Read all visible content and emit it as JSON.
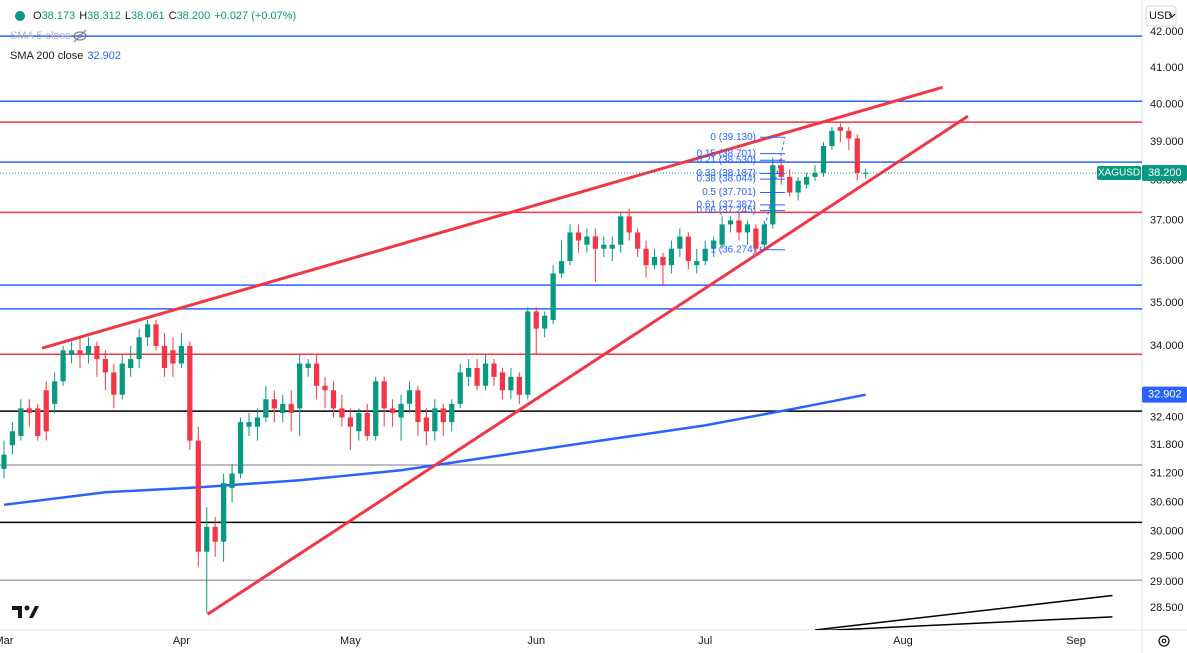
{
  "chart_data": {
    "type": "candlestick",
    "symbol": "XAGUSD",
    "currency": "USD",
    "header": {
      "items": [
        {
          "key": "O",
          "value": "38.173"
        },
        {
          "key": "H",
          "value": "38.312"
        },
        {
          "key": "L",
          "value": "38.061"
        },
        {
          "key": "C",
          "value": "38.200"
        }
      ],
      "change": "+0.027 (+0.07%)"
    },
    "hidden_indicator": "SMA 5 close",
    "up_color": "#089981",
    "down_color": "#f23645",
    "open": [
      31.3,
      31.8,
      32.0,
      32.6,
      32.6,
      33.0,
      32.7,
      33.2,
      33.8,
      33.9,
      33.8,
      34.0,
      33.7,
      33.4,
      32.9,
      33.5,
      33.7,
      34.2,
      34.5,
      34.0,
      33.9,
      33.6,
      34.0,
      31.9,
      29.6,
      30.1,
      29.8,
      30.9,
      31.2,
      32.2,
      32.2,
      32.4,
      32.8,
      32.5,
      32.7,
      32.6,
      33.5,
      33.6,
      33.1,
      33.0,
      32.6,
      32.4,
      32.1,
      32.5,
      32.0,
      33.2,
      32.6,
      32.4,
      32.7,
      33.0,
      32.4,
      32.1,
      32.6,
      32.3,
      32.7,
      33.3,
      33.5,
      33.1,
      33.6,
      33.4,
      33.0,
      33.3,
      32.9,
      34.8,
      34.4,
      34.6,
      35.7,
      36.0,
      36.7,
      36.4,
      36.6,
      36.3,
      36.3,
      36.4,
      37.1,
      36.7,
      36.3,
      35.9,
      36.1,
      35.9,
      36.3,
      36.6,
      35.9,
      36.0,
      36.3,
      36.4,
      36.9,
      37.0,
      36.7,
      36.8,
      36.4,
      36.9,
      38.4,
      38.1,
      37.7,
      37.9,
      38.1,
      38.2,
      38.9,
      39.4,
      39.3,
      39.1,
      38.173
    ],
    "high": [
      31.9,
      32.3,
      32.8,
      32.8,
      32.7,
      33.2,
      33.4,
      34.0,
      34.1,
      34.2,
      34.2,
      34.1,
      33.9,
      33.6,
      33.8,
      34.0,
      34.4,
      34.6,
      34.6,
      34.3,
      34.2,
      34.3,
      34.1,
      32.2,
      30.5,
      30.3,
      31.2,
      31.4,
      32.4,
      32.5,
      32.6,
      33.1,
      33.0,
      32.9,
      33.0,
      33.8,
      33.7,
      33.8,
      33.3,
      33.2,
      32.9,
      32.6,
      32.6,
      32.7,
      33.3,
      33.3,
      32.8,
      32.9,
      33.2,
      33.1,
      32.6,
      32.8,
      32.7,
      32.8,
      33.6,
      33.7,
      33.7,
      33.8,
      33.7,
      33.5,
      33.5,
      33.4,
      34.9,
      34.9,
      34.8,
      35.9,
      36.5,
      36.9,
      36.9,
      36.8,
      36.8,
      36.6,
      36.6,
      37.2,
      37.3,
      36.8,
      36.5,
      36.3,
      36.2,
      36.5,
      36.8,
      36.7,
      36.3,
      36.5,
      36.6,
      37.1,
      37.1,
      37.2,
      37.0,
      36.9,
      37.0,
      38.6,
      38.6,
      38.3,
      38.1,
      38.2,
      38.4,
      39.0,
      39.4,
      39.5,
      39.4,
      39.2,
      38.312
    ],
    "low": [
      31.1,
      31.6,
      31.9,
      32.2,
      31.9,
      31.9,
      32.5,
      33.1,
      33.6,
      33.5,
      33.6,
      33.3,
      33.0,
      32.6,
      32.8,
      33.3,
      33.5,
      34.0,
      33.9,
      33.3,
      33.3,
      33.5,
      31.7,
      29.3,
      28.4,
      29.5,
      29.4,
      30.6,
      31.1,
      32.0,
      31.9,
      32.3,
      32.3,
      32.3,
      32.1,
      32.0,
      33.3,
      32.8,
      32.6,
      32.4,
      32.2,
      31.7,
      31.9,
      31.9,
      31.9,
      32.2,
      32.2,
      31.9,
      32.5,
      32.0,
      31.8,
      31.9,
      32.0,
      32.1,
      32.6,
      33.1,
      33.0,
      33.0,
      33.1,
      32.8,
      32.8,
      32.7,
      32.8,
      33.8,
      34.2,
      34.5,
      35.6,
      35.9,
      36.2,
      36.2,
      35.5,
      36.1,
      36.0,
      36.2,
      36.5,
      36.1,
      35.6,
      35.8,
      35.4,
      35.7,
      36.1,
      35.8,
      35.7,
      35.9,
      36.1,
      36.3,
      36.7,
      36.5,
      36.4,
      36.2,
      36.3,
      36.8,
      37.9,
      37.6,
      37.5,
      37.8,
      38.0,
      38.1,
      38.8,
      39.0,
      38.8,
      38.0,
      38.061
    ],
    "close": [
      31.6,
      32.1,
      32.6,
      32.5,
      32.0,
      32.1,
      33.2,
      33.9,
      33.9,
      33.8,
      34.0,
      33.7,
      33.4,
      32.9,
      33.6,
      33.7,
      34.2,
      34.5,
      34.0,
      33.5,
      33.6,
      34.0,
      31.9,
      29.6,
      30.1,
      29.8,
      31.0,
      31.2,
      32.3,
      32.3,
      32.4,
      32.8,
      32.6,
      32.7,
      32.5,
      33.6,
      33.6,
      33.1,
      33.0,
      32.6,
      32.4,
      32.2,
      32.5,
      32.0,
      33.2,
      32.6,
      32.5,
      32.7,
      33.0,
      32.3,
      32.1,
      32.6,
      32.3,
      32.7,
      33.4,
      33.5,
      33.1,
      33.6,
      33.3,
      33.0,
      33.3,
      32.9,
      34.8,
      34.4,
      34.7,
      35.7,
      36.0,
      36.7,
      36.5,
      36.6,
      36.3,
      36.4,
      36.4,
      37.1,
      36.7,
      36.3,
      35.9,
      36.1,
      35.9,
      36.3,
      36.6,
      36.0,
      36.0,
      36.3,
      36.5,
      36.9,
      37.0,
      36.7,
      36.9,
      36.3,
      36.9,
      38.4,
      38.1,
      37.7,
      38.0,
      38.1,
      38.2,
      38.9,
      39.3,
      39.3,
      39.1,
      38.2,
      38.2
    ],
    "last_price": {
      "value": 38.2,
      "label": "38.200",
      "color": "#089981"
    },
    "sma": {
      "name": "SMA 200 close",
      "color": "#2962ff",
      "x": [
        0,
        12,
        23,
        35,
        47,
        59,
        71,
        83,
        94,
        102
      ],
      "values": [
        30.55,
        30.81,
        30.91,
        31.06,
        31.27,
        31.59,
        31.91,
        32.23,
        32.61,
        32.902
      ],
      "value_label": "32.902"
    },
    "levels": [
      {
        "value": 41.89,
        "color": "#2962ff"
      },
      {
        "value": 40.09,
        "color": "#2962ff"
      },
      {
        "value": 39.53,
        "color": "#f23645"
      },
      {
        "value": 38.48,
        "color": "#2962ff"
      },
      {
        "value": 37.2,
        "color": "#f23645"
      },
      {
        "value": 35.42,
        "color": "#2962ff"
      },
      {
        "value": 34.86,
        "color": "#2962ff"
      },
      {
        "value": 33.81,
        "color": "#f23645"
      },
      {
        "value": 32.54,
        "color": "#000000"
      },
      {
        "value": 31.38,
        "color": "#787b86"
      },
      {
        "value": 30.19,
        "color": "#000000"
      },
      {
        "value": 29.04,
        "color": "#787b86"
      }
    ],
    "trendlines": [
      {
        "x": [
          4.5,
          111.1
        ],
        "values": [
          33.95,
          40.47
        ],
        "color": "#f23645"
      },
      {
        "x": [
          24.1,
          114.1
        ],
        "values": [
          28.38,
          39.69
        ],
        "color": "#f23645"
      },
      {
        "x": [
          96,
          131.2
        ],
        "values": [
          28.08,
          28.74
        ],
        "color": "#000000"
      },
      {
        "x": [
          93,
          131.2
        ],
        "values": [
          28.04,
          28.33
        ],
        "color": "#000000"
      }
    ],
    "fib": [
      {
        "value": 39.13,
        "label": "0 (39.130)"
      },
      {
        "value": 38.701,
        "label": "0.15 (38.701)"
      },
      {
        "value": 38.53,
        "label": "0.21 (38.530)"
      },
      {
        "value": 38.187,
        "label": "0.33 (38.187)"
      },
      {
        "value": 38.044,
        "label": "0.38 (38.044)"
      },
      {
        "value": 37.701,
        "label": "0.5 (37.701)"
      },
      {
        "value": 37.387,
        "label": "0.61 (37.387)"
      },
      {
        "value": 37.245,
        "label": "0.66 (37.245)"
      },
      {
        "value": 36.274,
        "label": "1 (36.274)"
      }
    ],
    "log": true,
    "xlim": [
      -0.47,
      134.7
    ],
    "ylim": [
      28.08,
      42.92
    ],
    "xticks": [
      {
        "value": 0,
        "label": "Mar"
      },
      {
        "value": 21,
        "label": "Apr"
      },
      {
        "value": 41,
        "label": "May"
      },
      {
        "value": 63,
        "label": "Jun"
      },
      {
        "value": 83,
        "label": "Jul"
      },
      {
        "value": 106.4,
        "label": "Aug"
      },
      {
        "value": 126.9,
        "label": "Sep"
      }
    ],
    "yticks": [
      {
        "value": 28.5,
        "label": "28.500"
      },
      {
        "value": 29,
        "label": "29.000"
      },
      {
        "value": 29.5,
        "label": "29.500"
      },
      {
        "value": 30,
        "label": "30.000"
      },
      {
        "value": 30.6,
        "label": "30.600"
      },
      {
        "value": 31.2,
        "label": "31.200"
      },
      {
        "value": 31.8,
        "label": "31.800"
      },
      {
        "value": 32.4,
        "label": "32.400"
      },
      {
        "value": 34,
        "label": "34.000"
      },
      {
        "value": 35,
        "label": "35.000"
      },
      {
        "value": 36,
        "label": "36.000"
      },
      {
        "value": 37,
        "label": "37.000"
      },
      {
        "value": 38,
        "label": "38.000"
      },
      {
        "value": 39,
        "label": "39.000"
      },
      {
        "value": 40,
        "label": "40.000"
      },
      {
        "value": 41,
        "label": "41.000"
      },
      {
        "value": 42,
        "label": "42.000"
      }
    ]
  }
}
